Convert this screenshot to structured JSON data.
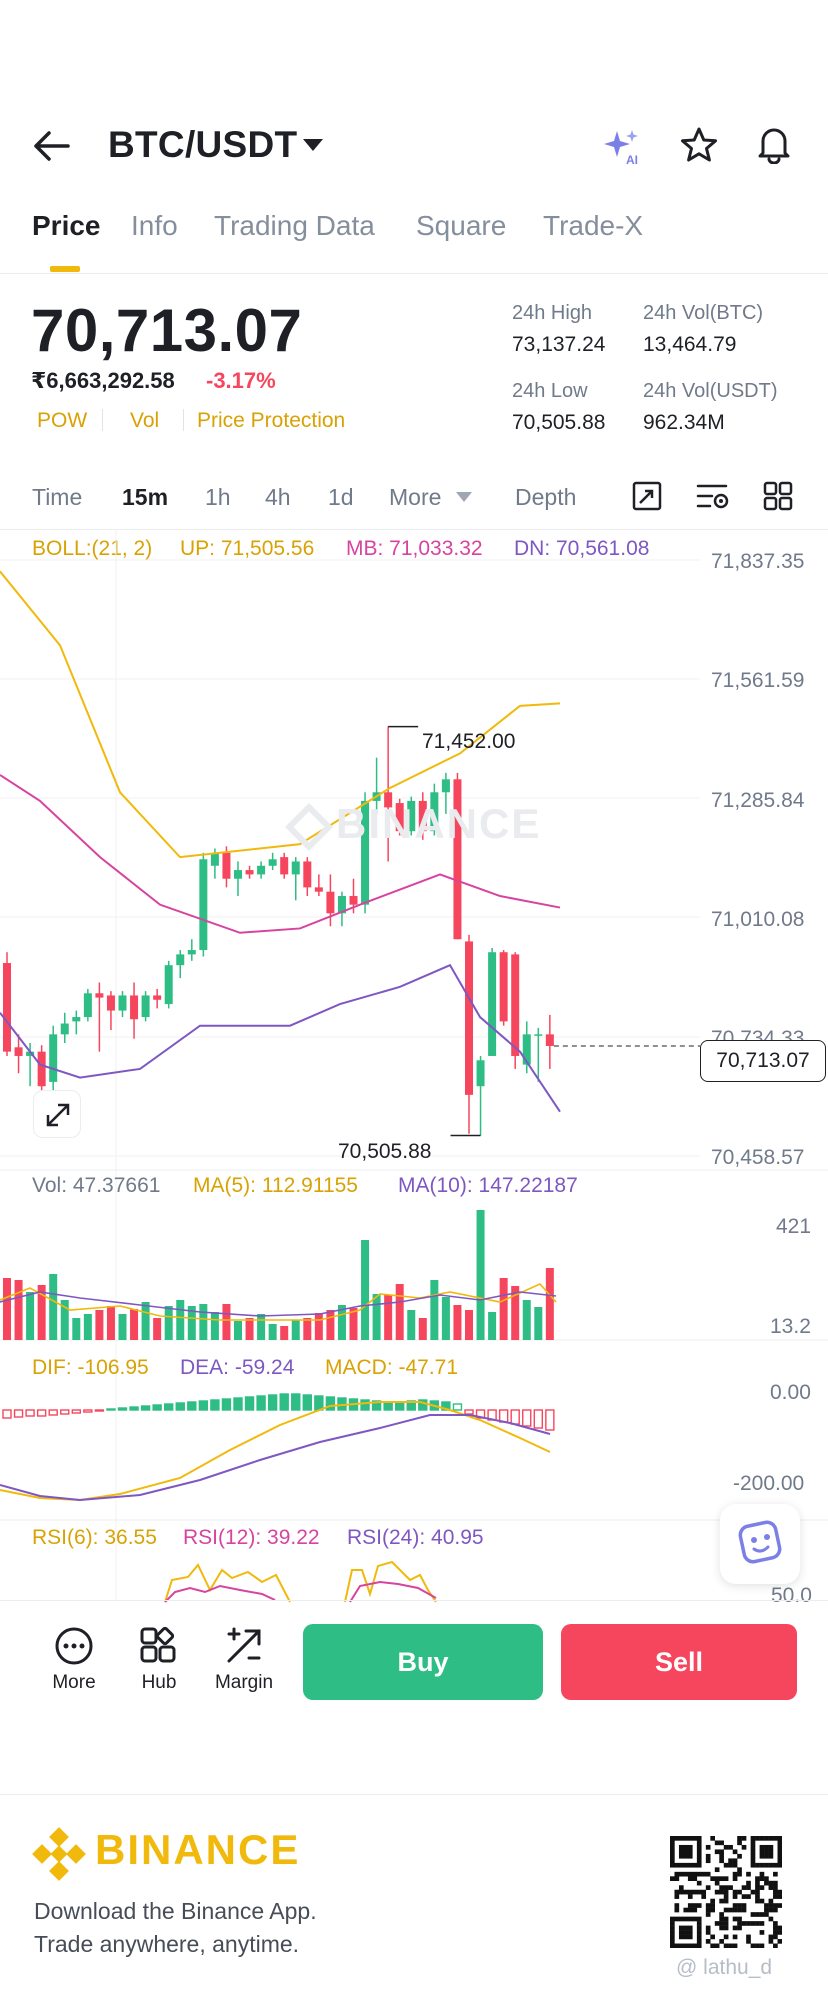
{
  "header": {
    "pair": "BTC/USDT",
    "icons": [
      "back-arrow-icon",
      "chevron-down-icon",
      "ai-sparkle-icon",
      "star-icon",
      "bell-icon"
    ],
    "ai_badge": "AI"
  },
  "tabs": [
    "Price",
    "Info",
    "Trading Data",
    "Square",
    "Trade-X"
  ],
  "ticker": {
    "last_price": "70,713.07",
    "fiat_price": "₹6,663,292.58",
    "change_pct": "-3.17%",
    "tags": [
      "POW",
      "Vol",
      "Price Protection"
    ],
    "stats": {
      "high_label": "24h High",
      "high": "73,137.24",
      "vol_btc_label": "24h Vol(BTC)",
      "vol_btc": "13,464.79",
      "low_label": "24h Low",
      "low": "70,505.88",
      "vol_usdt_label": "24h Vol(USDT)",
      "vol_usdt": "962.34M"
    }
  },
  "intervals": {
    "items": [
      "Time",
      "15m",
      "1h",
      "4h",
      "1d",
      "More",
      "Depth"
    ],
    "active": "15m",
    "icons": [
      "chart-expand-icon",
      "chart-settings-icon",
      "grid-layout-icon"
    ]
  },
  "chart": {
    "boll": {
      "name": "BOLL:(21, 2)",
      "up": "UP: 71,505.56",
      "mb": "MB: 71,033.32",
      "dn": "DN: 70,561.08"
    },
    "price_axis": [
      "71,837.35",
      "71,561.59",
      "71,285.84",
      "71,010.08",
      "70,734.33",
      "70,458.57"
    ],
    "high_marker": "71,452.00",
    "low_marker": "70,505.88",
    "current_price": "70,713.07",
    "watermark": "BINANCE",
    "volume": {
      "vol": "Vol: 47.37661",
      "ma5": "MA(5): 112.91155",
      "ma10": "MA(10): 147.22187",
      "axis_top": "421",
      "axis_bottom": "13.2"
    },
    "macd": {
      "dif": "DIF: -106.95",
      "dea": "DEA: -59.24",
      "macd": "MACD: -47.71",
      "axis_top": "0.00",
      "axis_bottom": "-200.00"
    },
    "rsi": {
      "rsi6": "RSI(6): 36.55",
      "rsi12": "RSI(12): 39.22",
      "rsi24": "RSI(24): 40.95",
      "axis": "50.0"
    },
    "colors": {
      "up": "#2ebd85",
      "down": "#f6465d",
      "boll_up": "#f0b90b",
      "boll_mb": "#d6449f",
      "boll_dn": "#7e57c2"
    }
  },
  "chart_data": {
    "type": "candlestick",
    "interval": "15m",
    "ylim": [
      70458.57,
      71837.35
    ],
    "candles": [
      {
        "o": 70905,
        "h": 70930,
        "l": 70690,
        "c": 70700
      },
      {
        "o": 70710,
        "h": 70740,
        "l": 70650,
        "c": 70690
      },
      {
        "o": 70690,
        "h": 70720,
        "l": 70620,
        "c": 70700
      },
      {
        "o": 70700,
        "h": 70715,
        "l": 70610,
        "c": 70620
      },
      {
        "o": 70630,
        "h": 70760,
        "l": 70560,
        "c": 70740
      },
      {
        "o": 70740,
        "h": 70790,
        "l": 70720,
        "c": 70765
      },
      {
        "o": 70770,
        "h": 70795,
        "l": 70740,
        "c": 70780
      },
      {
        "o": 70780,
        "h": 70845,
        "l": 70770,
        "c": 70835
      },
      {
        "o": 70835,
        "h": 70860,
        "l": 70700,
        "c": 70825
      },
      {
        "o": 70830,
        "h": 70840,
        "l": 70750,
        "c": 70795
      },
      {
        "o": 70795,
        "h": 70840,
        "l": 70780,
        "c": 70830
      },
      {
        "o": 70830,
        "h": 70860,
        "l": 70730,
        "c": 70775
      },
      {
        "o": 70780,
        "h": 70840,
        "l": 70770,
        "c": 70830
      },
      {
        "o": 70830,
        "h": 70845,
        "l": 70800,
        "c": 70820
      },
      {
        "o": 70810,
        "h": 70910,
        "l": 70800,
        "c": 70900
      },
      {
        "o": 70900,
        "h": 70935,
        "l": 70870,
        "c": 70925
      },
      {
        "o": 70925,
        "h": 70960,
        "l": 70910,
        "c": 70935
      },
      {
        "o": 70935,
        "h": 71160,
        "l": 70920,
        "c": 71145
      },
      {
        "o": 71130,
        "h": 71170,
        "l": 71100,
        "c": 71160
      },
      {
        "o": 71160,
        "h": 71175,
        "l": 71080,
        "c": 71100
      },
      {
        "o": 71100,
        "h": 71140,
        "l": 71060,
        "c": 71120
      },
      {
        "o": 71120,
        "h": 71130,
        "l": 71100,
        "c": 71110
      },
      {
        "o": 71110,
        "h": 71140,
        "l": 71100,
        "c": 71130
      },
      {
        "o": 71130,
        "h": 71160,
        "l": 71120,
        "c": 71145
      },
      {
        "o": 71150,
        "h": 71160,
        "l": 71100,
        "c": 71110
      },
      {
        "o": 71110,
        "h": 71150,
        "l": 71050,
        "c": 71140
      },
      {
        "o": 71140,
        "h": 71150,
        "l": 71060,
        "c": 71080
      },
      {
        "o": 71080,
        "h": 71110,
        "l": 71060,
        "c": 71070
      },
      {
        "o": 71070,
        "h": 71110,
        "l": 70990,
        "c": 71020
      },
      {
        "o": 71020,
        "h": 71070,
        "l": 70990,
        "c": 71060
      },
      {
        "o": 71060,
        "h": 71100,
        "l": 71020,
        "c": 71040
      },
      {
        "o": 71040,
        "h": 71300,
        "l": 71020,
        "c": 71280
      },
      {
        "o": 71280,
        "h": 71380,
        "l": 71250,
        "c": 71300
      },
      {
        "o": 71300,
        "h": 71452,
        "l": 71140,
        "c": 71265
      },
      {
        "o": 71275,
        "h": 71285,
        "l": 71200,
        "c": 71210
      },
      {
        "o": 71210,
        "h": 71290,
        "l": 71200,
        "c": 71280
      },
      {
        "o": 71280,
        "h": 71300,
        "l": 71190,
        "c": 71210
      },
      {
        "o": 71210,
        "h": 71320,
        "l": 71200,
        "c": 71300
      },
      {
        "o": 71300,
        "h": 71345,
        "l": 71250,
        "c": 71330
      },
      {
        "o": 71330,
        "h": 71345,
        "l": 70960,
        "c": 70960
      },
      {
        "o": 70955,
        "h": 70970,
        "l": 70510,
        "c": 70600
      },
      {
        "o": 70620,
        "h": 70690,
        "l": 70505.88,
        "c": 70680
      },
      {
        "o": 70690,
        "h": 70940,
        "l": 70690,
        "c": 70930
      },
      {
        "o": 70930,
        "h": 70935,
        "l": 70760,
        "c": 70770
      },
      {
        "o": 70925,
        "h": 70930,
        "l": 70660,
        "c": 70690
      },
      {
        "o": 70670,
        "h": 70770,
        "l": 70650,
        "c": 70740
      },
      {
        "o": 70740,
        "h": 70755,
        "l": 70630,
        "c": 70740
      },
      {
        "o": 70740,
        "h": 70785,
        "l": 70660,
        "c": 70713.07
      }
    ],
    "boll_up": [
      [
        0,
        71811
      ],
      [
        60,
        71640
      ],
      [
        120,
        71300
      ],
      [
        180,
        71150
      ],
      [
        300,
        71180
      ],
      [
        390,
        71310
      ],
      [
        460,
        71390
      ],
      [
        520,
        71500
      ],
      [
        560,
        71505.56
      ]
    ],
    "boll_mb": [
      [
        0,
        71340
      ],
      [
        40,
        71280
      ],
      [
        100,
        71150
      ],
      [
        160,
        71040
      ],
      [
        240,
        70975
      ],
      [
        300,
        70985
      ],
      [
        360,
        71040
      ],
      [
        440,
        71110
      ],
      [
        500,
        71060
      ],
      [
        560,
        71033.32
      ]
    ],
    "boll_dn": [
      [
        0,
        70790
      ],
      [
        40,
        70670
      ],
      [
        80,
        70640
      ],
      [
        140,
        70660
      ],
      [
        200,
        70760
      ],
      [
        290,
        70760
      ],
      [
        340,
        70810
      ],
      [
        400,
        70850
      ],
      [
        450,
        70900
      ],
      [
        480,
        70780
      ],
      [
        520,
        70700
      ],
      [
        560,
        70561.08
      ]
    ],
    "volume": {
      "vol": 47.37661,
      "ma5": 112.91155,
      "ma10": 147.22187,
      "ylim": [
        13.2,
        421
      ]
    },
    "macd": {
      "dif": -106.95,
      "dea": -59.24,
      "macd": -47.71,
      "ylim": [
        -200,
        0
      ]
    },
    "rsi": {
      "rsi6": 36.55,
      "rsi12": 39.22,
      "rsi24": 40.95
    }
  },
  "actions": {
    "more": "More",
    "hub": "Hub",
    "margin": "Margin",
    "buy": "Buy",
    "sell": "Sell"
  },
  "footer": {
    "brand": "BINANCE",
    "line1": "Download the Binance App.",
    "line2": "Trade anywhere, anytime.",
    "watermark": "@ lathu_d"
  }
}
